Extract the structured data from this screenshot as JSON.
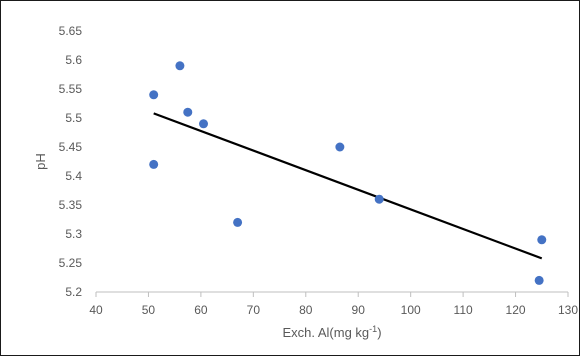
{
  "chart_data": {
    "type": "scatter",
    "title": "",
    "xlabel": "Exch. Al(mg kg-1)",
    "xlabel_parts": {
      "base": "Exch. Al(mg kg",
      "sup": "-1",
      "tail": ")"
    },
    "ylabel": "pH",
    "xlim": [
      40,
      130
    ],
    "ylim": [
      5.2,
      5.65
    ],
    "x_ticks": [
      "40",
      "50",
      "60",
      "70",
      "80",
      "90",
      "100",
      "110",
      "120",
      "130"
    ],
    "y_ticks": [
      "5.2",
      "5.25",
      "5.3",
      "5.35",
      "5.4",
      "5.45",
      "5.5",
      "5.55",
      "5.6",
      "5.65"
    ],
    "grid": false,
    "legend": "none",
    "series": [
      {
        "marker_color": "#4472c4",
        "points": [
          {
            "x": 51,
            "y": 5.54
          },
          {
            "x": 51,
            "y": 5.42
          },
          {
            "x": 56,
            "y": 5.59
          },
          {
            "x": 57.5,
            "y": 5.51
          },
          {
            "x": 60.5,
            "y": 5.49
          },
          {
            "x": 67,
            "y": 5.32
          },
          {
            "x": 86.5,
            "y": 5.45
          },
          {
            "x": 94,
            "y": 5.36
          },
          {
            "x": 124.5,
            "y": 5.22
          },
          {
            "x": 125,
            "y": 5.29
          }
        ]
      }
    ],
    "trendline": {
      "type": "linear",
      "color": "#000000",
      "x_start": 51,
      "y_start": 5.508,
      "x_end": 125,
      "y_end": 5.258
    }
  }
}
